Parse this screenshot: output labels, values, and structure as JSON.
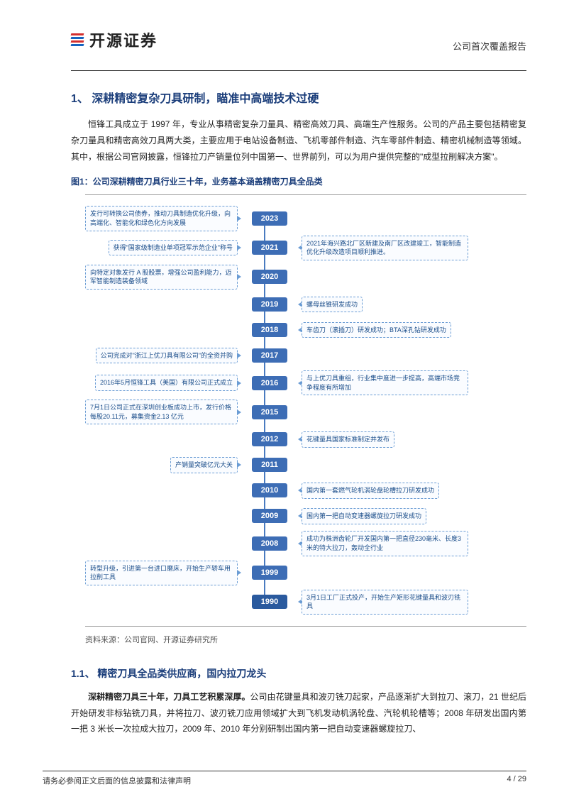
{
  "header": {
    "company": "开源证券",
    "report_type": "公司首次覆盖报告"
  },
  "section1": {
    "number": "1、",
    "title": "深耕精密复杂刀具研制，瞄准中高端技术过硬",
    "para1": "恒锋工具成立于 1997 年，专业从事精密复杂刀量具、精密高效刀具、高端生产性服务。公司的产品主要包括精密复杂刀量具和精密高效刀具两大类，主要应用于电站设备制造、飞机零部件制造、汽车零部件制造、精密机械制造等领域。其中，根据公司官网披露，恒锋拉刀产销量位列中国第一、世界前列，可以为用户提供完整的\"成型拉削解决方案\"。"
  },
  "figure1": {
    "title": "图1：公司深耕精密刀具行业三十年，业务基本涵盖精密刀具全品类",
    "source": "资料来源：公司官网、开源证券研究所",
    "timeline": [
      {
        "year": "2023",
        "left": "发行可转换公司债券，推动刀具制造优化升级，向高端化、智能化和绿色化方向发展",
        "right": ""
      },
      {
        "year": "2021",
        "left": "获得\"国家级制造业单项冠军示范企业\"称号",
        "right": "2021年海兴路北厂区新建及南厂区改建竣工，智能制造优化升级改造项目顺利推进。"
      },
      {
        "year": "2020",
        "left": "向特定对象发行 A 股股票，增强公司盈利能力，迈军智能制造装备领域",
        "right": ""
      },
      {
        "year": "2019",
        "left": "",
        "right": "螺母丝锥研发成功"
      },
      {
        "year": "2018",
        "left": "",
        "right": "车齿刀（滚插刀）研发成功；BTA深孔钻研发成功"
      },
      {
        "year": "2017",
        "left": "公司完成对\"浙江上优刀具有限公司\"的全资并购",
        "right": ""
      },
      {
        "year": "2016",
        "left": "2016年5月恒锋工具（美国）有限公司正式成立",
        "right": "与上优刀具重组，行业集中度进一步提高，高端市场竞争程度有所增加"
      },
      {
        "year": "2015",
        "left": "7月1日公司正式在深圳创业板成功上市，发行价格每股20.11元，募集资金2.13 亿元",
        "right": ""
      },
      {
        "year": "2012",
        "left": "",
        "right": "花键量具国家标准制定并发布"
      },
      {
        "year": "2011",
        "left": "产销量突破亿元大关",
        "right": ""
      },
      {
        "year": "2010",
        "left": "",
        "right": "国内第一套燃气轮机涡轮盘轮槽拉刀研发成功"
      },
      {
        "year": "2009",
        "left": "",
        "right": "国内第一把自动变速器螺旋拉刀研发成功"
      },
      {
        "year": "2008",
        "left": "",
        "right": "成功为株洲齿轮厂开发国内第一把直径230毫米、长度3米的特大拉刀，轰动全行业"
      },
      {
        "year": "1999",
        "left": "转型升级，引进第一台进口磨床，开始生产轿车用拉削工具",
        "right": ""
      },
      {
        "year": "1990",
        "left": "",
        "right": "3月1日工厂正式投产，开始生产矩形花键量具和波刃铣具",
        "end": true
      }
    ]
  },
  "section11": {
    "number": "1.1、",
    "title": "精密刀具全品类供应商，国内拉刀龙头",
    "para1_bold": "深耕精密刀具三十年，刀具工艺积累深厚。",
    "para1": "公司由花键量具和波刃铣刀起家，产品逐渐扩大到拉刀、滚刀，21 世纪后开始研发非标钻铣刀具，并将拉刀、波刃铣刀应用领域扩大到飞机发动机涡轮盘、汽轮机轮槽等；2008 年研发出国内第一把 3 米长一次拉成大拉刀，2009 年、2010 年分别研制出国内第一把自动变速器螺旋拉刀、"
  },
  "footer": {
    "left": "请务必参阅正文后面的信息披露和法律声明",
    "right": "4 / 29"
  },
  "colors": {
    "heading": "#1a3d7a",
    "timeline_year_bg": "#3d6db5",
    "timeline_box_border": "#6a9cd4",
    "timeline_box_text": "#1a4d8a",
    "timeline_line": "#4a7bc0"
  }
}
